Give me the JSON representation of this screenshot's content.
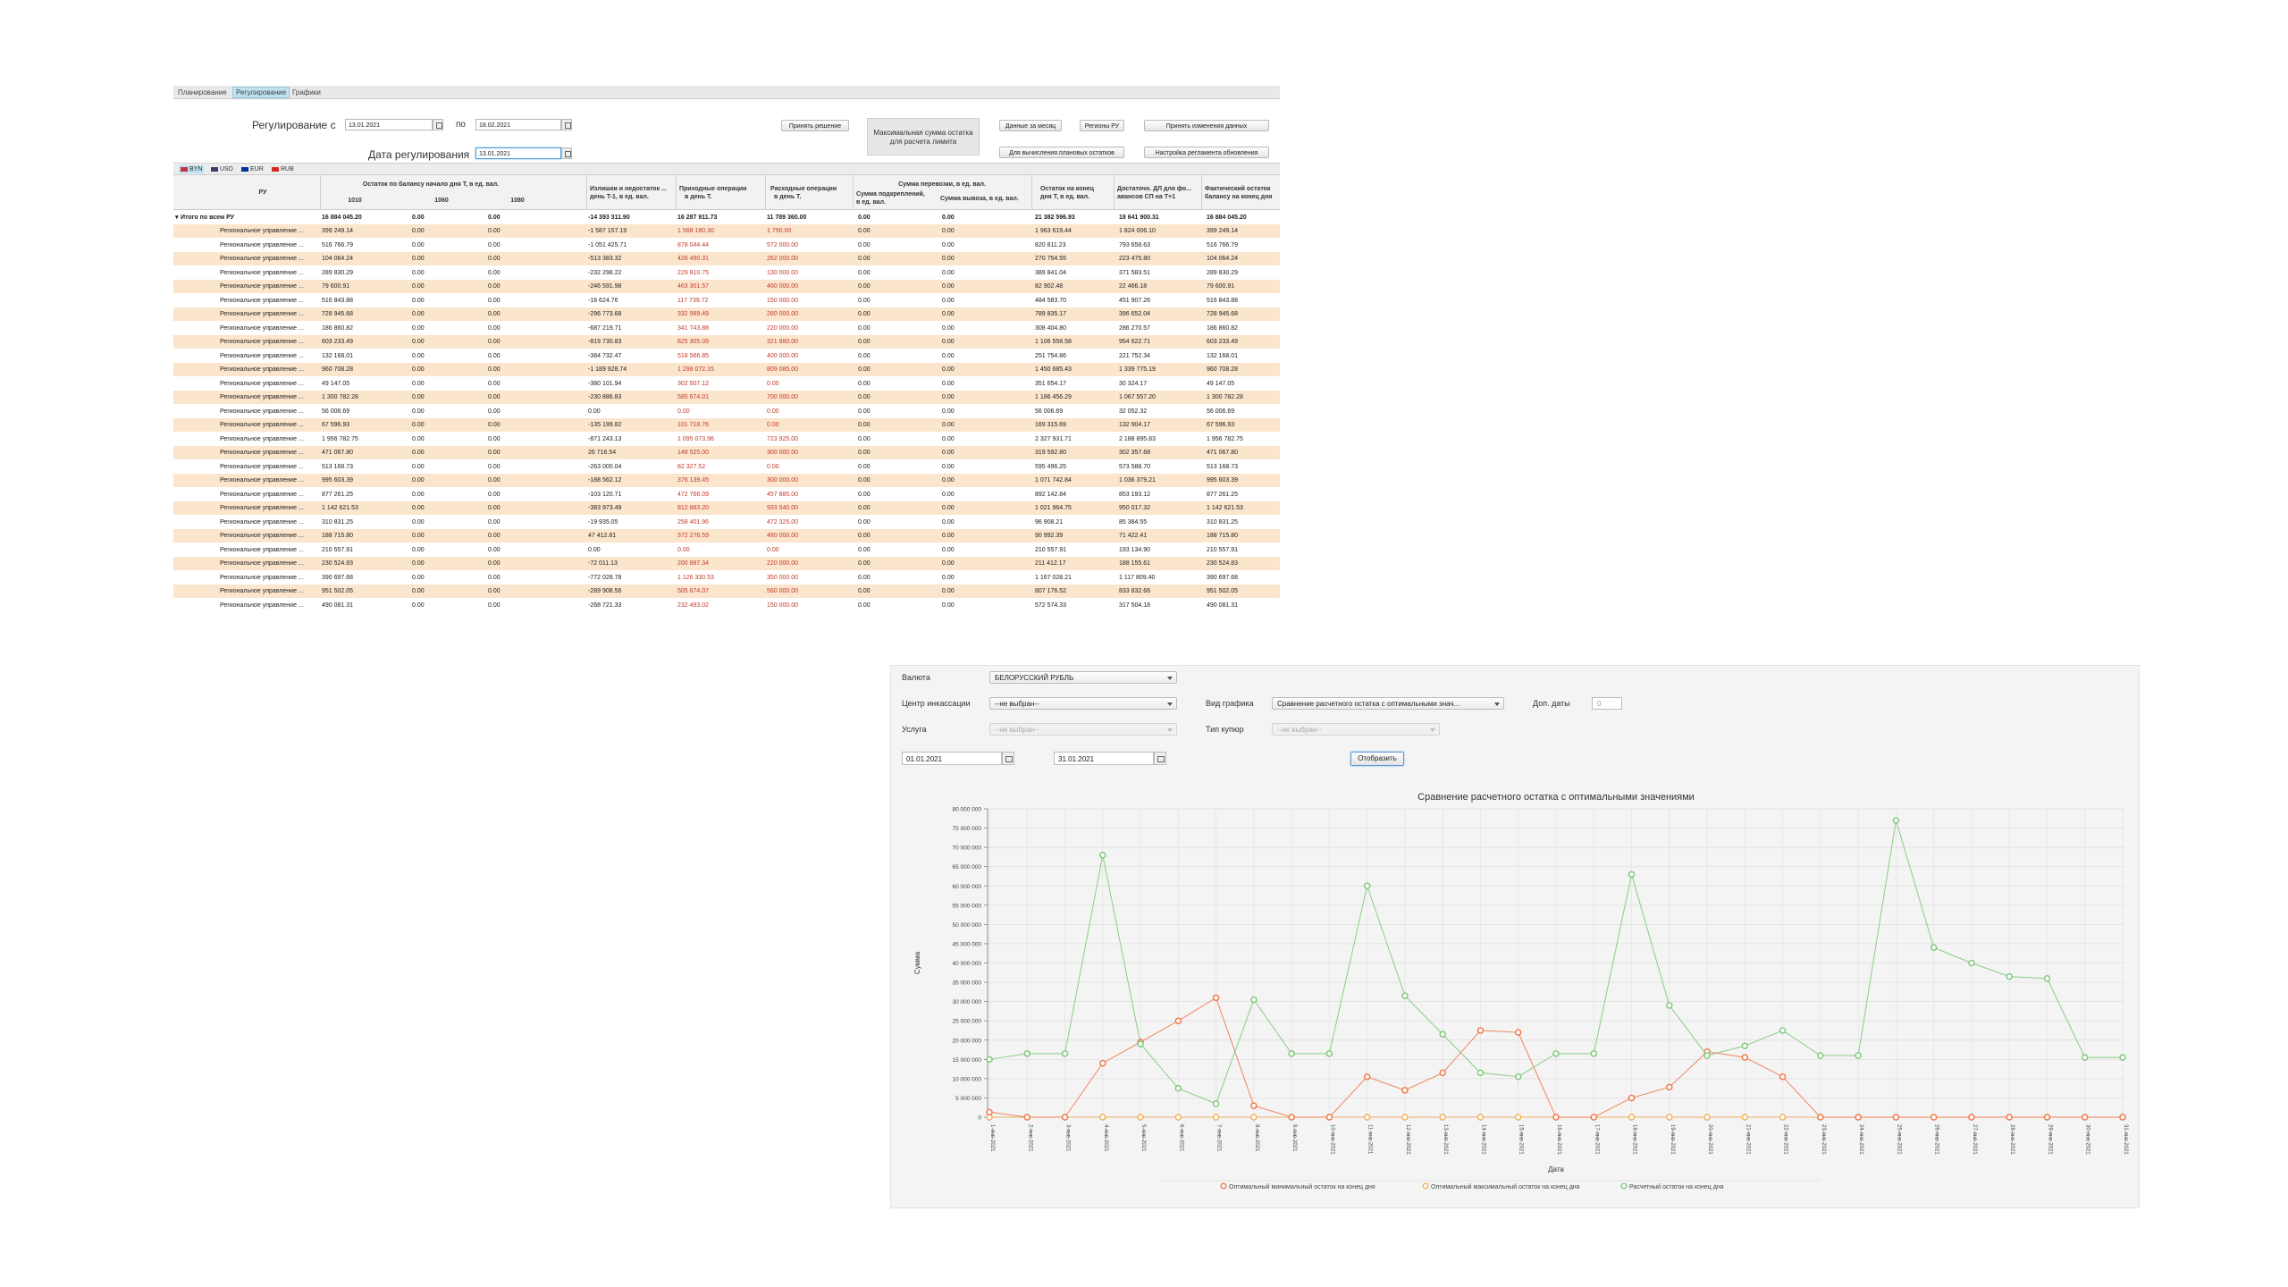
{
  "reg": {
    "tabs": [
      "Планирование",
      "Регулирование",
      "Графики"
    ],
    "active_tab": 1,
    "period_label": "Регулирование с",
    "date_from": "13.01.2021",
    "to_label": "по",
    "date_to": "18.02.2021",
    "reg_date_label": "Дата регулирования",
    "reg_date": "13.01.2021",
    "btn_accept": "Принять решение",
    "max_box_line1": "Максимальная сумма остатка",
    "max_box_line2": "для расчета лимита",
    "btn_month": "Данные за месяц",
    "btn_regions": "Регионы РУ",
    "btn_apply": "Принять изменения данных",
    "btn_plan": "Для вычисления плановых остатков",
    "btn_settings": "Настройка регламента обновления",
    "currencies": [
      "BYN",
      "USD",
      "EUR",
      "RUB"
    ],
    "active_currency": 0,
    "currency_colors": [
      "#c8313e",
      "#3c3b6e",
      "#003399",
      "#d52b1e"
    ],
    "headers": {
      "ru": "РУ",
      "balance_group": "Остаток по балансу начало дня T, в ед. вал.",
      "b1010": "1010",
      "b1060": "1060",
      "b1080": "1080",
      "surplus_1": "Излишки и недостаток ...",
      "surplus_2": "день T-1, в ед. вал.",
      "income_1": "Приходные операции",
      "income_2": "в день T.",
      "expense_1": "Расходные операции",
      "expense_2": "в день T.",
      "transfer_group": "Сумма перевозки, в ед. вал.",
      "reinforce_1": "Сумма подкреплений,",
      "reinforce_2": "в ед. вал.",
      "export": "Сумма вывоза, в ед. вал.",
      "end_1": "Остаток на конец",
      "end_2": "дня T, в ед. вал.",
      "suff_1": "Достаточн. ДЛ для фо...",
      "suff_2": "авансов СП на T+1",
      "actual_1": "Фактический остаток",
      "actual_2": "балансу на конец дня"
    },
    "total_row": [
      "Итого по всем РУ",
      "16 884 045.20",
      "0.00",
      "0.00",
      "-14 393 311.90",
      "16 287 911.73",
      "11 789 360.00",
      "0.00",
      "0.00",
      "21 382 596.93",
      "18 641 900.31",
      "16 884 045.20"
    ],
    "rows": [
      [
        "Региональное управление ...",
        "399 249.14",
        "0.00",
        "0.00",
        "-1 587 157.19",
        "1 568 180.30",
        "1 790.00",
        "0.00",
        "0.00",
        "1 963 619.44",
        "1 824 006.10",
        "399 249.14"
      ],
      [
        "Региональное управление ...",
        "516 766.79",
        "0.00",
        "0.00",
        "-1 051 425.71",
        "878 044.44",
        "572 000.00",
        "0.00",
        "0.00",
        "820 811.23",
        "793 658.63",
        "516 766.79"
      ],
      [
        "Региональное управление ...",
        "104 064.24",
        "0.00",
        "0.00",
        "-513 383.32",
        "428 490.31",
        "262 000.00",
        "0.00",
        "0.00",
        "270 754.55",
        "223 475.80",
        "104 064.24"
      ],
      [
        "Региональное управление ...",
        "289 830.29",
        "0.00",
        "0.00",
        "-232 298.22",
        "229 810.75",
        "130 000.00",
        "0.00",
        "0.00",
        "389 841.04",
        "371 583.51",
        "289 830.29"
      ],
      [
        "Региональное управление ...",
        "79 600.91",
        "0.00",
        "0.00",
        "-246 591.98",
        "463 301.57",
        "460 000.00",
        "0.00",
        "0.00",
        "82 902.48",
        "22 466.18",
        "79 600.91"
      ],
      [
        "Региональное управление ...",
        "516 843.88",
        "0.00",
        "0.00",
        "-16 624.76",
        "117 739.72",
        "150 000.00",
        "0.00",
        "0.00",
        "484 583.70",
        "451 907.26",
        "516 843.88"
      ],
      [
        "Региональное управление ...",
        "728 945.68",
        "0.00",
        "0.00",
        "-296 773.68",
        "332 989.49",
        "280 000.00",
        "0.00",
        "0.00",
        "789 835.17",
        "396 652.04",
        "728 945.68"
      ],
      [
        "Региональное управление ...",
        "186 860.82",
        "0.00",
        "0.00",
        "-687 219.71",
        "341 743.88",
        "220 000.00",
        "0.00",
        "0.00",
        "308 404.80",
        "286 270.57",
        "186 860.82"
      ],
      [
        "Региональное управление ...",
        "603 233.49",
        "0.00",
        "0.00",
        "-819 730.83",
        "825 305.09",
        "321 880.00",
        "0.00",
        "0.00",
        "1 106 558.58",
        "954 622.71",
        "603 233.49"
      ],
      [
        "Региональное управление ...",
        "132 168.01",
        "0.00",
        "0.00",
        "-384 732.47",
        "518 566.85",
        "400 000.00",
        "0.00",
        "0.00",
        "251 754.86",
        "221 752.34",
        "132 168.01"
      ],
      [
        "Региональное управление ...",
        "960 708.28",
        "0.00",
        "0.00",
        "-1 189 928.74",
        "1 298 072.15",
        "809 085.00",
        "0.00",
        "0.00",
        "1 450 685.43",
        "1 339 775.19",
        "960 708.28"
      ],
      [
        "Региональное управление ...",
        "49 147.05",
        "0.00",
        "0.00",
        "-380 101.94",
        "302 507.12",
        "0.00",
        "0.00",
        "0.00",
        "351 654.17",
        "30 324.17",
        "49 147.05"
      ],
      [
        "Региональное управление ...",
        "1 300 782.28",
        "0.00",
        "0.00",
        "-230 886.83",
        "585 674.01",
        "700 000.00",
        "0.00",
        "0.00",
        "1 186 456.29",
        "1 067 557.20",
        "1 300 782.28"
      ],
      [
        "Региональное управление ...",
        "56 006.69",
        "0.00",
        "0.00",
        "0.00",
        "0.00",
        "0.00",
        "0.00",
        "0.00",
        "56 006.69",
        "32 052.32",
        "56 006.69"
      ],
      [
        "Региональное управление ...",
        "67 596.93",
        "0.00",
        "0.00",
        "-135 199.82",
        "101 718.76",
        "0.00",
        "0.00",
        "0.00",
        "169 315.69",
        "132 904.17",
        "67 596.93"
      ],
      [
        "Региональное управление ...",
        "1 956 782.75",
        "0.00",
        "0.00",
        "-871 243.13",
        "1 095 073.96",
        "723 925.00",
        "0.00",
        "0.00",
        "2 327 931.71",
        "2 188 895.83",
        "1 956 782.75"
      ],
      [
        "Региональное управление ...",
        "471 067.80",
        "0.00",
        "0.00",
        "26 716.54",
        "148 525.00",
        "300 000.00",
        "0.00",
        "0.00",
        "319 592.80",
        "302 357.68",
        "471 067.80"
      ],
      [
        "Региональное управление ...",
        "513 168.73",
        "0.00",
        "0.00",
        "-263 000.04",
        "82 327.52",
        "0.00",
        "0.00",
        "0.00",
        "595 496.25",
        "573 588.70",
        "513 168.73"
      ],
      [
        "Региональное управление ...",
        "995 603.39",
        "0.00",
        "0.00",
        "-188 562.12",
        "376 139.45",
        "300 000.00",
        "0.00",
        "0.00",
        "1 071 742.84",
        "1 036 379.21",
        "995 603.39"
      ],
      [
        "Региональное управление ...",
        "877 261.25",
        "0.00",
        "0.00",
        "-103 120.71",
        "472 766.09",
        "457 885.00",
        "0.00",
        "0.00",
        "892 142.84",
        "853 193.12",
        "877 261.25"
      ],
      [
        "Региональное управление ...",
        "1 142 621.53",
        "0.00",
        "0.00",
        "-383 973.49",
        "812 883.20",
        "933 540.00",
        "0.00",
        "0.00",
        "1 021 964.75",
        "950 017.32",
        "1 142 621.53"
      ],
      [
        "Региональное управление ...",
        "310 831.25",
        "0.00",
        "0.00",
        "-19 935.05",
        "258 401.96",
        "472 325.00",
        "0.00",
        "0.00",
        "96 908.21",
        "85 384.55",
        "310 831.25"
      ],
      [
        "Региональное управление ...",
        "188 715.80",
        "0.00",
        "0.00",
        "47 412.81",
        "372 276.59",
        "480 000.00",
        "0.00",
        "0.00",
        "90 992.39",
        "71 422.41",
        "188 715.80"
      ],
      [
        "Региональное управление ...",
        "210 557.91",
        "0.00",
        "0.00",
        "0.00",
        "0.00",
        "0.00",
        "0.00",
        "0.00",
        "210 557.91",
        "193 134.90",
        "210 557.91"
      ],
      [
        "Региональное управление ...",
        "230 524.83",
        "0.00",
        "0.00",
        "-72 011.13",
        "200 887.34",
        "220 000.00",
        "0.00",
        "0.00",
        "211 412.17",
        "188 155.61",
        "230 524.83"
      ],
      [
        "Региональное управление ...",
        "390 697.68",
        "0.00",
        "0.00",
        "-772 028.78",
        "1 126 330.53",
        "350 000.00",
        "0.00",
        "0.00",
        "1 167 028.21",
        "1 117 809.40",
        "390 697.68"
      ],
      [
        "Региональное управление ...",
        "951 502.05",
        "0.00",
        "0.00",
        "-289 908.56",
        "505 674.07",
        "560 000.00",
        "0.00",
        "0.00",
        "807 176.52",
        "833 832.66",
        "951 502.05"
      ],
      [
        "Региональное управление ...",
        "490 081.31",
        "0.00",
        "0.00",
        "-268 721.33",
        "232 493.02",
        "150 000.00",
        "0.00",
        "0.00",
        "572 574.33",
        "317 504.18",
        "490 081.31"
      ]
    ]
  },
  "form": {
    "currency_label": "Валюта",
    "currency_value": "БЕЛОРУССКИЙ РУБЛЬ",
    "center_label": "Центр инкассации",
    "center_value": "--не выбран--",
    "chart_type_label": "Вид графика",
    "chart_type_value": "Сравнение расчетного остатка с оптимальными знач...",
    "extra_dates_label": "Доп. даты",
    "extra_dates_value": "0",
    "service_label": "Услуга",
    "service_value": "--не выбран--",
    "coupon_label": "Тип купюр",
    "coupon_value": "--не выбран--",
    "date_from": "01.01.2021",
    "date_to": "31.01.2021",
    "show_button": "Отобразить"
  },
  "chart_data": {
    "type": "line",
    "title": "Сравнение расчетного остатка с оптимальными значениями",
    "xlabel": "Дата",
    "ylabel": "Сумма",
    "ylim": [
      0,
      80000000
    ],
    "y_ticks": [
      "0",
      "5 000 000",
      "10 000 000",
      "15 000 000",
      "20 000 000",
      "25 000 000",
      "30 000 000",
      "35 000 000",
      "40 000 000",
      "45 000 000",
      "50 000 000",
      "55 000 000",
      "60 000 000",
      "65 000 000",
      "70 000 000",
      "75 000 000",
      "80 000 000"
    ],
    "categories": [
      "1-янв-2021",
      "2-янв-2021",
      "3-янв-2021",
      "4-янв-2021",
      "5-янв-2021",
      "6-янв-2021",
      "7-янв-2021",
      "8-янв-2021",
      "9-янв-2021",
      "10-янв-2021",
      "11-янв-2021",
      "12-янв-2021",
      "13-янв-2021",
      "14-янв-2021",
      "15-янв-2021",
      "16-янв-2021",
      "17-янв-2021",
      "18-янв-2021",
      "19-янв-2021",
      "20-янв-2021",
      "21-янв-2021",
      "22-янв-2021",
      "23-янв-2021",
      "24-янв-2021",
      "25-янв-2021",
      "26-янв-2021",
      "27-янв-2021",
      "28-янв-2021",
      "29-янв-2021",
      "30-янв-2021",
      "31-янв-2021"
    ],
    "series": [
      {
        "name": "Оптимальный минимальный остаток на конец дня",
        "color": "#f07a4e",
        "values": [
          1300000,
          0,
          0,
          14000000,
          19500000,
          25000000,
          31000000,
          3000000,
          0,
          0,
          10500000,
          7000000,
          11500000,
          22500000,
          22000000,
          0,
          0,
          5000000,
          7800000,
          17000000,
          15500000,
          10500000,
          0,
          0,
          0,
          0,
          0,
          0,
          0,
          0,
          0
        ]
      },
      {
        "name": "Оптимальный максимальный остаток на конец дня",
        "color": "#f2b35a",
        "values": [
          0,
          0,
          0,
          0,
          0,
          0,
          0,
          0,
          0,
          0,
          0,
          0,
          0,
          0,
          0,
          0,
          0,
          0,
          0,
          0,
          0,
          0,
          0,
          0,
          0,
          0,
          0,
          0,
          0,
          0,
          0
        ]
      },
      {
        "name": "Расчетный остаток на конец дня",
        "color": "#7fc97a",
        "values": [
          15000000,
          16500000,
          16500000,
          68000000,
          19000000,
          7500000,
          3500000,
          30500000,
          16500000,
          16500000,
          60000000,
          31500000,
          21500000,
          11500000,
          10500000,
          16500000,
          16500000,
          63000000,
          29000000,
          16000000,
          18500000,
          22500000,
          16000000,
          16000000,
          77000000,
          44000000,
          40000000,
          36500000,
          36000000,
          15500000,
          15500000
        ]
      }
    ]
  }
}
